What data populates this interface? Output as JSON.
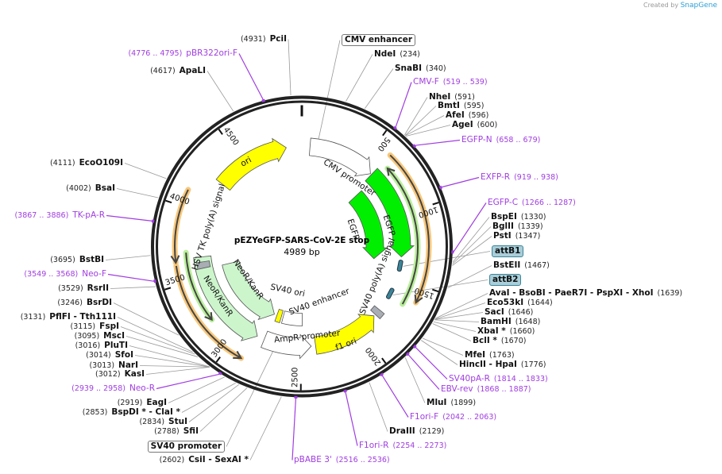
{
  "credit": {
    "prefix": "Created by",
    "brand": "SnapGene"
  },
  "plasmid": {
    "name": "pEZYeGFP-SARS-CoV-2E stop",
    "length": "4989 bp",
    "total_bp": 4989
  },
  "ticks": [
    "500",
    "1000",
    "1500",
    "2000",
    "2500",
    "3000",
    "3500",
    "4000",
    "4500"
  ],
  "colors": {
    "primer": "#a03de0",
    "yellow": "#ffff00",
    "green": "#00ee00",
    "lightgreen": "#ccf5cc",
    "orange": "#f5b041",
    "gray": "#a9adb4",
    "attb": "#3b8597"
  },
  "sites": [
    {
      "name": "PciI",
      "pos": "4931",
      "bp": 4931
    },
    {
      "name": "NdeI",
      "pos": "234",
      "bp": 234
    },
    {
      "name": "SnaBI",
      "pos": "340",
      "bp": 340
    },
    {
      "name": "NheI",
      "pos": "591",
      "bp": 591
    },
    {
      "name": "BmtI",
      "pos": "595",
      "bp": 595
    },
    {
      "name": "AfeI",
      "pos": "596",
      "bp": 596
    },
    {
      "name": "AgeI",
      "pos": "600",
      "bp": 600
    },
    {
      "name": "BspEI",
      "pos": "1330",
      "bp": 1330
    },
    {
      "name": "BglII",
      "pos": "1339",
      "bp": 1339
    },
    {
      "name": "PstI",
      "pos": "1347",
      "bp": 1347
    },
    {
      "name": "BstEII",
      "pos": "1467",
      "bp": 1467
    },
    {
      "name": "AvaI  - BsoBI  - PaeR7I  - PspXI  - XhoI",
      "pos": "1639",
      "bp": 1639
    },
    {
      "name": "Eco53kI",
      "pos": "1644",
      "bp": 1644
    },
    {
      "name": "SacI",
      "pos": "1646",
      "bp": 1646
    },
    {
      "name": "BamHI",
      "pos": "1648",
      "bp": 1648
    },
    {
      "name": "XbaI *",
      "pos": "1660",
      "bp": 1660
    },
    {
      "name": "BclI *",
      "pos": "1670",
      "bp": 1670
    },
    {
      "name": "MfeI",
      "pos": "1763",
      "bp": 1763
    },
    {
      "name": "HincII  - HpaI",
      "pos": "1776",
      "bp": 1776
    },
    {
      "name": "MluI",
      "pos": "1899",
      "bp": 1899
    },
    {
      "name": "DraIII",
      "pos": "2129",
      "bp": 2129
    },
    {
      "name": "CsiI  - SexAI *",
      "pos": "2602",
      "bp": 2602
    },
    {
      "name": "SfiI",
      "pos": "2788",
      "bp": 2788
    },
    {
      "name": "StuI",
      "pos": "2834",
      "bp": 2834
    },
    {
      "name": "BspDI *  - ClaI *",
      "pos": "2853",
      "bp": 2853
    },
    {
      "name": "EagI",
      "pos": "2919",
      "bp": 2919
    },
    {
      "name": "KasI",
      "pos": "3012",
      "bp": 3012
    },
    {
      "name": "NarI",
      "pos": "3013",
      "bp": 3013
    },
    {
      "name": "SfoI",
      "pos": "3014",
      "bp": 3014
    },
    {
      "name": "PluTI",
      "pos": "3016",
      "bp": 3016
    },
    {
      "name": "MscI",
      "pos": "3095",
      "bp": 3095
    },
    {
      "name": "FspI",
      "pos": "3115",
      "bp": 3115
    },
    {
      "name": "PflFI  - Tth111I",
      "pos": "3131",
      "bp": 3131
    },
    {
      "name": "BsrDI",
      "pos": "3246",
      "bp": 3246
    },
    {
      "name": "RsrII",
      "pos": "3529",
      "bp": 3529
    },
    {
      "name": "BstBI",
      "pos": "3695",
      "bp": 3695
    },
    {
      "name": "BsaI",
      "pos": "4002",
      "bp": 4002
    },
    {
      "name": "EcoO109I",
      "pos": "4111",
      "bp": 4111
    },
    {
      "name": "ApaLI",
      "pos": "4617",
      "bp": 4617
    }
  ],
  "primers": [
    {
      "name": "CMV-F",
      "pos": "519 .. 539",
      "bp": 529
    },
    {
      "name": "EGFP-N",
      "pos": "658 .. 679",
      "bp": 668
    },
    {
      "name": "EXFP-R",
      "pos": "919 .. 938",
      "bp": 928
    },
    {
      "name": "EGFP-C",
      "pos": "1266 .. 1287",
      "bp": 1276
    },
    {
      "name": "SV40pA-R",
      "pos": "1814 .. 1833",
      "bp": 1823
    },
    {
      "name": "EBV-rev",
      "pos": "1868 .. 1887",
      "bp": 1877
    },
    {
      "name": "F1ori-F",
      "pos": "2042 .. 2063",
      "bp": 2052
    },
    {
      "name": "F1ori-R",
      "pos": "2254 .. 2273",
      "bp": 2263
    },
    {
      "name": "pBABE 3'",
      "pos": "2516 .. 2536",
      "bp": 2526
    },
    {
      "name": "Neo-R",
      "pos": "2939 .. 2958",
      "bp": 2948
    },
    {
      "name": "Neo-F",
      "pos": "3549 .. 3568",
      "bp": 3558
    },
    {
      "name": "TK-pA-R",
      "pos": "3867 .. 3886",
      "bp": 3876
    },
    {
      "name": "pBR322ori-F",
      "pos": "4776 .. 4795",
      "bp": 4785
    }
  ],
  "feature_boxes": [
    {
      "name": "CMV enhancer",
      "bp": 120
    },
    {
      "name": "attB1",
      "bp": 1400
    },
    {
      "name": "attB2",
      "bp": 1635
    },
    {
      "name": "SV40 promoter",
      "bp": 2700
    }
  ],
  "features": [
    {
      "name": "CMV enhancer",
      "start": 65,
      "end": 600,
      "dir": 1,
      "track": "outer",
      "color": "#ffffff"
    },
    {
      "name": "EGFP",
      "start": 610,
      "end": 1330,
      "dir": 1,
      "track": "outer",
      "color": "#00ee00"
    },
    {
      "name": "EGFP",
      "start": 650,
      "end": 1380,
      "dir": 1,
      "track": "inner",
      "color": "#00ee00"
    },
    {
      "name": "f1 ori",
      "start": 1855,
      "end": 2385,
      "dir": -1,
      "track": "outer",
      "color": "#ffff00"
    },
    {
      "name": "AmpR promoter",
      "start": 2420,
      "end": 2800,
      "dir": -1,
      "track": "outer",
      "color": "#ffffff"
    },
    {
      "name": "NeoR/KanR",
      "start": 2860,
      "end": 3660,
      "dir": -1,
      "track": "outer",
      "color": "#ccf5cc"
    },
    {
      "name": "NeoR/KanR",
      "start": 2800,
      "end": 3560,
      "dir": -1,
      "track": "inner",
      "color": "#ccf5cc"
    },
    {
      "name": "SV40 ori",
      "start": 2720,
      "end": 2770,
      "dir": 0,
      "track": "inner",
      "color": "#ffff00"
    },
    {
      "name": "SV40 enhancer",
      "start": 2490,
      "end": 2700,
      "dir": 0,
      "track": "inner",
      "color": "#ffffff"
    },
    {
      "name": "ori",
      "start": 4270,
      "end": 4865,
      "dir": 1,
      "track": "outer",
      "color": "#ffff00"
    },
    {
      "name": "SV40 poly(A) signal",
      "start": 1790,
      "end": 1840,
      "dir": 0,
      "track": "outer",
      "color": "#a9adb4"
    },
    {
      "name": "HSV TK poly(A) signal",
      "start": 3570,
      "end": 3620,
      "dir": 0,
      "track": "outer",
      "color": "#a9adb4"
    }
  ],
  "orfs": [
    {
      "start": 610,
      "end": 1610,
      "dir": 1,
      "kind": "orange"
    },
    {
      "start": 2890,
      "end": 3620,
      "dir": -1,
      "kind": "orange"
    },
    {
      "start": 3640,
      "end": 4110,
      "dir": -1,
      "kind": "orange"
    },
    {
      "start": 660,
      "end": 1660,
      "dir": -1,
      "kind": "green"
    },
    {
      "start": 3200,
      "end": 3700,
      "dir": -1,
      "kind": "green"
    }
  ],
  "att_sites": [
    {
      "bp": 1400
    },
    {
      "bp": 1635
    }
  ],
  "feature_labels": {
    "ori": "ori",
    "cmv_promoter": "CMV promoter",
    "egfp_outer": "EGFP",
    "egfp_inner": "EGFP",
    "sv40_polya": "SV40 poly(A) signal",
    "f1_ori": "f1 ori",
    "ampr_promoter": "AmpR promoter",
    "sv40_ori": "SV40 ori",
    "sv40_enhancer": "SV40 enhancer",
    "neo_inner": "NeoR/KanR",
    "neo_outer": "NeoR/KanR",
    "hsv_tk": "HSV TK poly(A) signal"
  }
}
